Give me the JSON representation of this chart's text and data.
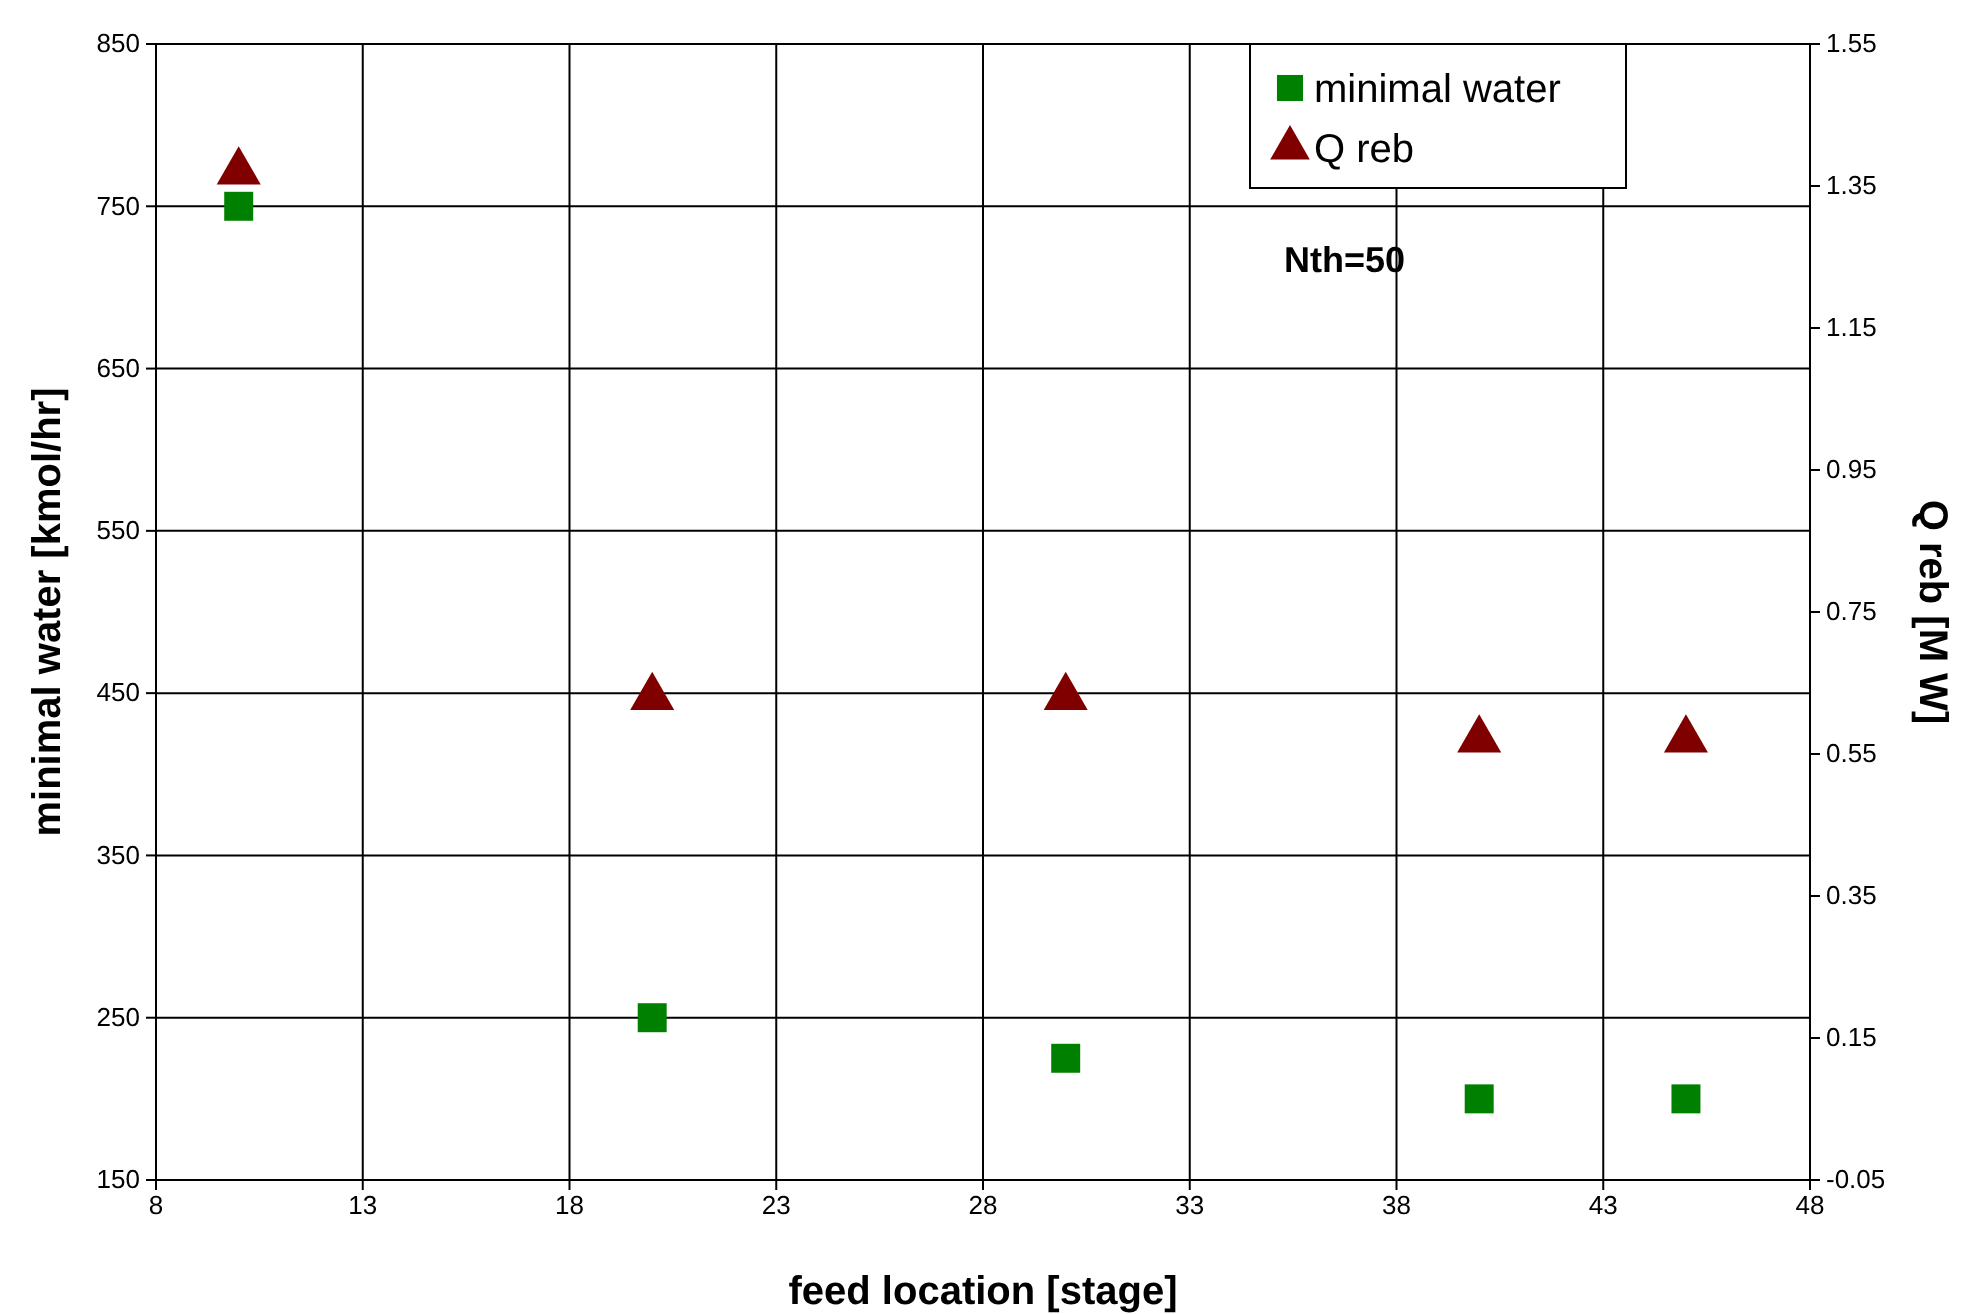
{
  "chart_data": {
    "type": "scatter",
    "xlabel": "feed location [stage]",
    "ylabel": "minimal water [kmol/hr]",
    "y2label": "Q reb [M W]",
    "x": [
      10,
      20,
      30,
      40,
      45
    ],
    "xlim": [
      8,
      48
    ],
    "xticks": [
      8,
      13,
      18,
      23,
      28,
      33,
      38,
      43,
      48
    ],
    "ylim": [
      150,
      850
    ],
    "yticks": [
      150,
      250,
      350,
      450,
      550,
      650,
      750,
      850
    ],
    "y2lim": [
      -0.05,
      1.55
    ],
    "y2ticks": [
      -0.05,
      0.15,
      0.35,
      0.55,
      0.75,
      0.95,
      1.15,
      1.35,
      1.55
    ],
    "series": [
      {
        "name": "minimal water",
        "color": "#008000",
        "marker": "square",
        "values": [
          750,
          250,
          225,
          200,
          200
        ]
      },
      {
        "name": "Q reb",
        "color": "#800000",
        "marker": "triangle",
        "axis": "y2",
        "values": [
          1.37,
          0.63,
          0.63,
          0.57,
          0.57
        ]
      }
    ],
    "annotations": [
      "Nth=50"
    ],
    "grid": true,
    "legend": "top right"
  }
}
